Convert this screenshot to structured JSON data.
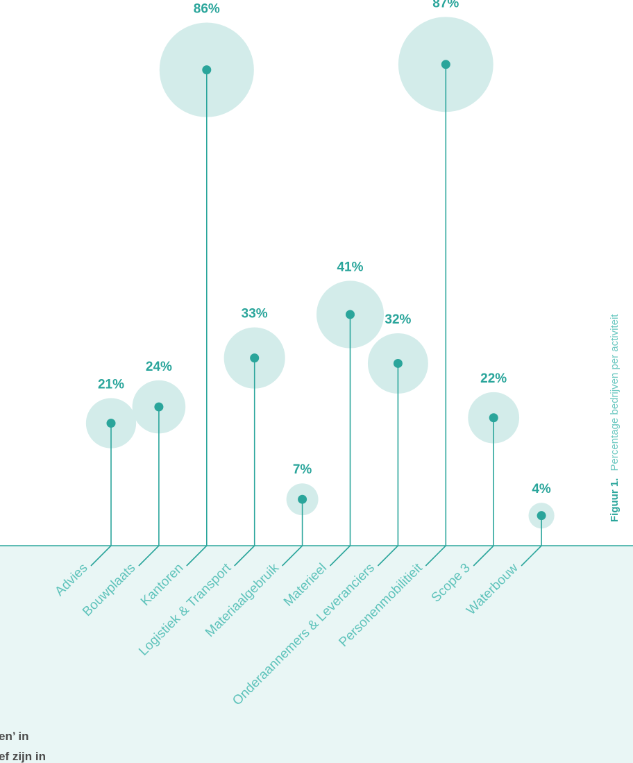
{
  "caption": {
    "label": "Figuur 1.",
    "text": "Percentage bedrijven per activiteit"
  },
  "body_fragments": [
    "en’ in",
    "ef zijn in"
  ],
  "colors": {
    "accent": "#2aa59b",
    "bubble": "#d3ecea",
    "panel": "#e9f6f5",
    "label": "#5fc3bb"
  },
  "chart_data": {
    "type": "scatter",
    "title": "",
    "categories": [
      "Advies",
      "Bouwplaats",
      "Kantoren",
      "Logistiek & Transport",
      "Materiaalgebruik",
      "Materieel",
      "Onderaannemers & Leveranciers",
      "Personenmobilitieit",
      "Scope 3",
      "Waterbouw"
    ],
    "values": [
      21,
      24,
      86,
      33,
      7,
      41,
      32,
      87,
      22,
      4
    ],
    "labels": [
      "21%",
      "24%",
      "86%",
      "33%",
      "7%",
      "41%",
      "32%",
      "87%",
      "22%",
      "4%"
    ],
    "unit": "%",
    "ylim": [
      0,
      100
    ],
    "grid": false,
    "legend": "none"
  }
}
